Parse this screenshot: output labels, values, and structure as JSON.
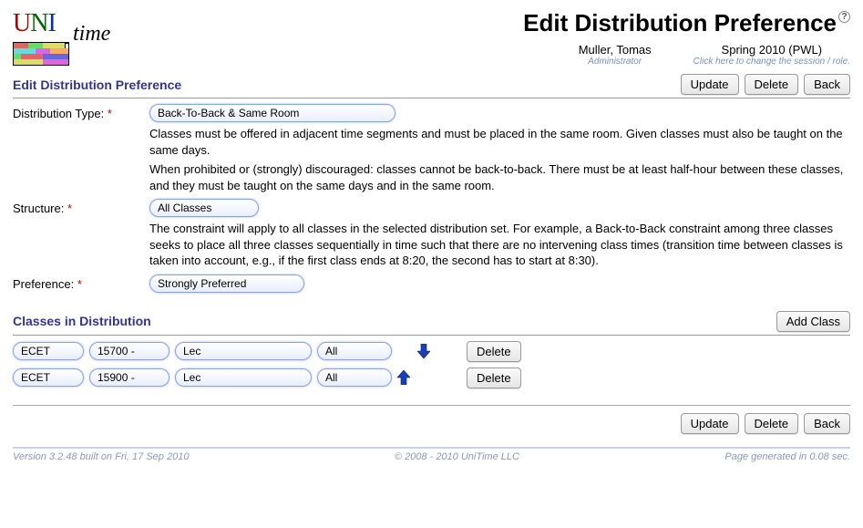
{
  "header": {
    "page_title": "Edit Distribution Preference",
    "user_name": "Muller, Tomas",
    "user_role": "Administrator",
    "session_name": "Spring 2010 (PWL)",
    "session_hint": "Click here to change the session / role."
  },
  "sections": {
    "edit_title": "Edit Distribution Preference",
    "classes_title": "Classes in Distribution"
  },
  "buttons": {
    "update": "Update",
    "delete": "Delete",
    "back": "Back",
    "add_class": "Add Class",
    "row_delete": "Delete"
  },
  "form": {
    "dist_type": {
      "label": "Distribution Type:",
      "value": "Back-To-Back & Same Room",
      "desc1": "Classes must be offered in adjacent time segments and must be placed in the same room. Given classes must also be taught on the same days.",
      "desc2": "When prohibited or (strongly) discouraged: classes cannot be back-to-back. There must be at least half-hour between these classes, and they must be taught on the same days and in the same room."
    },
    "structure": {
      "label": "Structure:",
      "value": "All Classes",
      "desc": "The constraint will apply to all classes in the selected distribution set. For example, a Back-to-Back constraint among three classes seeks to place all three classes sequentially in time such that there are no intervening class times (transition time between classes is taken into account, e.g., if the first class ends at 8:20, the second has to start at 8:30)."
    },
    "preference": {
      "label": "Preference:",
      "value": "Strongly Preferred"
    }
  },
  "class_rows": [
    {
      "subject": "ECET",
      "course": "15700 -",
      "subpart": "Lec",
      "class": "All"
    },
    {
      "subject": "ECET",
      "course": "15900 -",
      "subpart": "Lec",
      "class": "All"
    }
  ],
  "footer": {
    "left": "Version 3.2.48 built on Fri, 17 Sep 2010",
    "mid": "© 2008 - 2010 UniTime LLC",
    "right": "Page generated in 0.08 sec."
  },
  "style": {
    "select_widths": {
      "dist_type": 270,
      "structure": 120,
      "preference": 170,
      "subject": 78,
      "course": 88,
      "subpart": 150,
      "class": 82
    },
    "colors": {
      "arrow_fill": "#1a3fb5",
      "arrow_stroke": "#0a1e66"
    }
  }
}
